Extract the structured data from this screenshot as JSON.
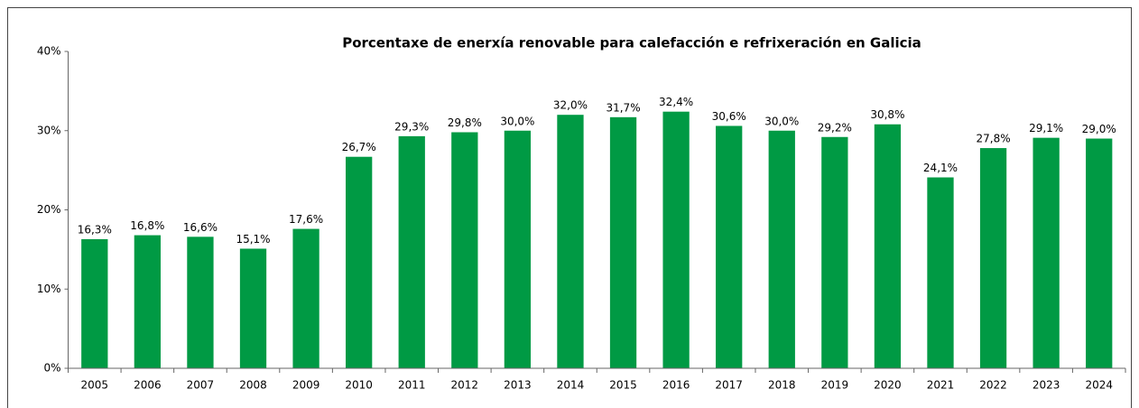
{
  "chart_data": {
    "type": "bar",
    "title": "Porcentaxe de enerxía renovable para calefacción e refrixeración en Galicia",
    "categories": [
      "2005",
      "2006",
      "2007",
      "2008",
      "2009",
      "2010",
      "2011",
      "2012",
      "2013",
      "2014",
      "2015",
      "2016",
      "2017",
      "2018",
      "2019",
      "2020",
      "2021",
      "2022",
      "2023",
      "2024"
    ],
    "values": [
      16.3,
      16.8,
      16.6,
      15.1,
      17.6,
      26.7,
      29.3,
      29.8,
      30.0,
      32.0,
      31.7,
      32.4,
      30.6,
      30.0,
      29.2,
      30.8,
      24.1,
      27.8,
      29.1,
      29.0
    ],
    "value_labels": [
      "16,3%",
      "16,8%",
      "16,6%",
      "15,1%",
      "17,6%",
      "26,7%",
      "29,3%",
      "29,8%",
      "30,0%",
      "32,0%",
      "31,7%",
      "32,4%",
      "30,6%",
      "30,0%",
      "29,2%",
      "30,8%",
      "24,1%",
      "27,8%",
      "29,1%",
      "29,0%"
    ],
    "color": "#009a44",
    "ylim": [
      0,
      40
    ],
    "yticks": [
      {
        "value": 0,
        "label": "0%"
      },
      {
        "value": 10,
        "label": "10%"
      },
      {
        "value": 20,
        "label": "20%"
      },
      {
        "value": 30,
        "label": "30%"
      },
      {
        "value": 40,
        "label": "40%"
      }
    ],
    "grid": false
  }
}
